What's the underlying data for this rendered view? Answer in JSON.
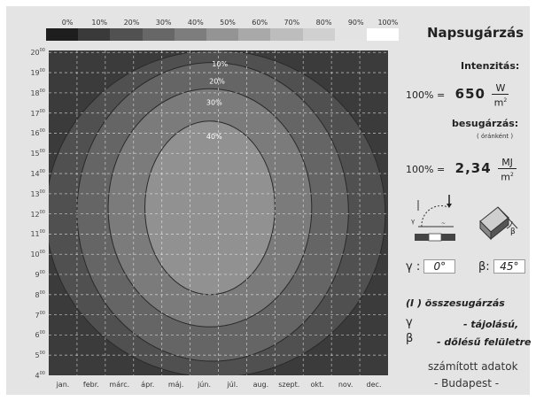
{
  "chart_data": {
    "type": "heatmap",
    "title": "Napsugárzás",
    "colorscale": {
      "labels": [
        "0%",
        "10%",
        "20%",
        "30%",
        "40%",
        "50%",
        "60%",
        "70%",
        "80%",
        "90%",
        "100%"
      ],
      "colors": [
        "#1e1e1e",
        "#3a3a3a",
        "#515151",
        "#676767",
        "#7d7d7d",
        "#949494",
        "#a9a9a9",
        "#bdbdbd",
        "#d0d0d0",
        "#e3e3e3",
        "#ffffff"
      ]
    },
    "x_categories": [
      "jan.",
      "febr.",
      "márc.",
      "ápr.",
      "máj.",
      "jún.",
      "júl.",
      "aug.",
      "szept.",
      "okt.",
      "nov.",
      "dec."
    ],
    "y_ticks": [
      {
        "h": "4",
        "m": "00"
      },
      {
        "h": "5",
        "m": "00"
      },
      {
        "h": "6",
        "m": "00"
      },
      {
        "h": "7",
        "m": "00"
      },
      {
        "h": "8",
        "m": "00"
      },
      {
        "h": "9",
        "m": "00"
      },
      {
        "h": "10",
        "m": "00"
      },
      {
        "h": "11",
        "m": "00"
      },
      {
        "h": "12",
        "m": "00"
      },
      {
        "h": "13",
        "m": "00"
      },
      {
        "h": "14",
        "m": "00"
      },
      {
        "h": "15",
        "m": "00"
      },
      {
        "h": "16",
        "m": "00"
      },
      {
        "h": "17",
        "m": "00"
      },
      {
        "h": "18",
        "m": "00"
      },
      {
        "h": "19",
        "m": "00"
      },
      {
        "h": "20",
        "m": "00"
      }
    ],
    "contour_labels": [
      "10%",
      "20%",
      "30%",
      "40%"
    ],
    "grid": true,
    "contours": [
      {
        "level": "10%",
        "color": "#505050",
        "cx": 5.9,
        "cy": 12.0,
        "rx": 6.0,
        "ry": 8.1
      },
      {
        "level": "20%",
        "color": "#656565",
        "cx": 5.8,
        "cy": 12.1,
        "rx": 4.8,
        "ry": 7.4
      },
      {
        "level": "30%",
        "color": "#7b7b7b",
        "cx": 5.7,
        "cy": 12.3,
        "rx": 3.6,
        "ry": 5.9
      },
      {
        "level": "40%",
        "color": "#919191",
        "cx": 5.7,
        "cy": 12.3,
        "rx": 2.3,
        "ry": 4.3
      }
    ]
  },
  "panel": {
    "title": "Napsugárzás",
    "intensity_label": "Intenzitás:",
    "intensity_prefix": "100% =",
    "intensity_value": "650",
    "intensity_unit_num": "W",
    "intensity_unit_den": "m",
    "intensity_unit_exp": "2",
    "irradiation_label": "besugárzás:",
    "irradiation_sub": "( óránként )",
    "irradiation_prefix": "100% =",
    "irradiation_value": "2,34",
    "irradiation_unit_num": "MJ",
    "irradiation_unit_den": "m",
    "irradiation_unit_exp": "2",
    "gamma_label": "γ  :",
    "gamma_value": "0°",
    "beta_label": "β:",
    "beta_value": "45°",
    "legend_line1": "(I  )  összesugárzás",
    "legend_line2_sym": "γ",
    "legend_line2": "- tájolású,",
    "legend_line3_sym": "β",
    "legend_line3": "- dőlésű felületre",
    "footer1": "számított adatok",
    "footer2": "- Budapest -"
  }
}
